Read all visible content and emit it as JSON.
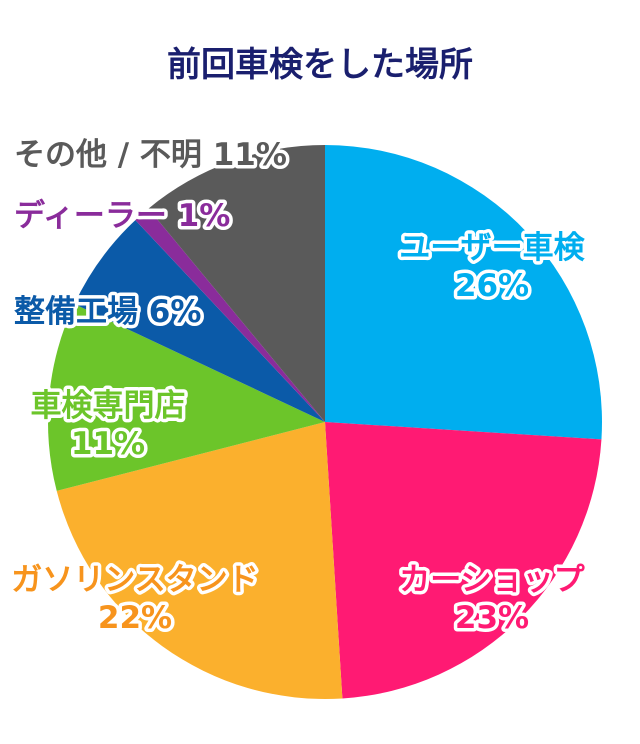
{
  "chart_data": {
    "type": "pie",
    "title": "前回車検をした場所",
    "start_angle_deg": 0,
    "direction": "clockwise",
    "slices": [
      {
        "label": "ユーザー車検",
        "value": 26,
        "value_label": "26%",
        "color": "#00aeef",
        "text_color": "#00aeef"
      },
      {
        "label": "カーショップ",
        "value": 23,
        "value_label": "23%",
        "color": "#ff1a73",
        "text_color": "#ff1a73"
      },
      {
        "label": "ガソリンスタンド",
        "value": 22,
        "value_label": "22%",
        "color": "#fbb02d",
        "text_color": "#f7941d"
      },
      {
        "label": "車検専門店",
        "value": 11,
        "value_label": "11%",
        "color": "#6cc52a",
        "text_color": "#6cc52a"
      },
      {
        "label": "整備工場",
        "value": 6,
        "value_label": "6%",
        "color": "#0b5aa8",
        "text_color": "#0b5aa8"
      },
      {
        "label": "ディーラー",
        "value": 1,
        "value_label": "1%",
        "color": "#8a2c9b",
        "text_color": "#8a2c9b"
      },
      {
        "label": "その他 / 不明",
        "value": 11,
        "value_label": "11%",
        "color": "#5a5a5a",
        "text_color": "#5a5a5a"
      }
    ]
  }
}
